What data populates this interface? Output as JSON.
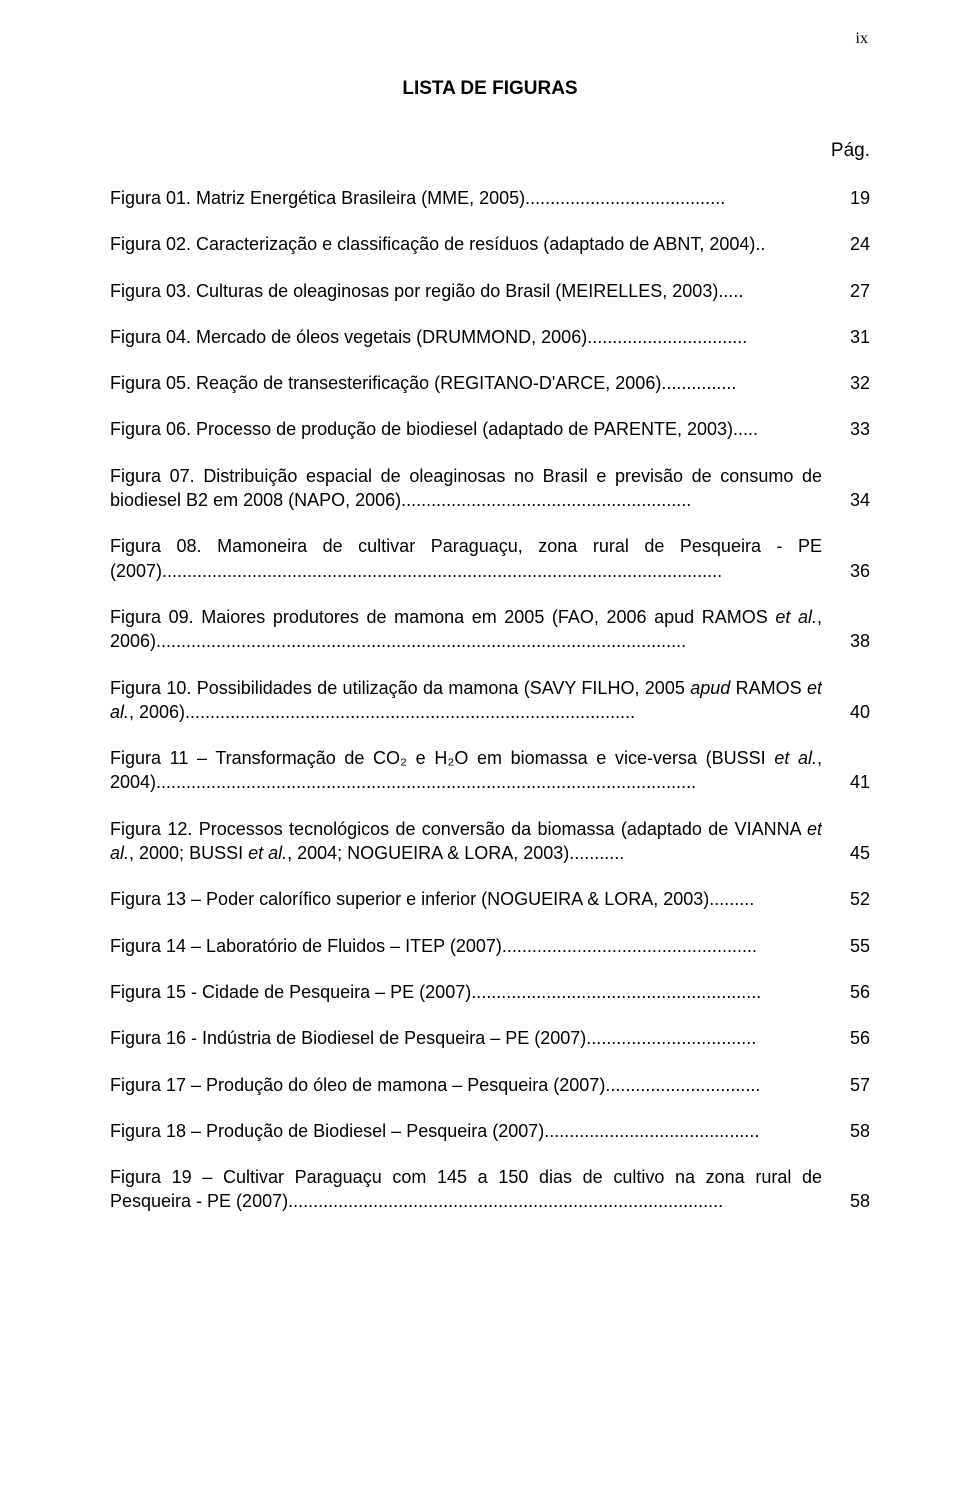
{
  "page_number_roman": "ix",
  "title": "LISTA DE FIGURAS",
  "pag_label": "Pág.",
  "typography": {
    "body_font": "Arial",
    "pagenum_font": "Times New Roman",
    "title_fontsize_pt": 14,
    "body_fontsize_pt": 13,
    "text_color": "#000000",
    "background_color": "#ffffff"
  },
  "entries": [
    {
      "text": "Figura 01. Matriz Energética Brasileira (MME, 2005)........................................",
      "page": "19"
    },
    {
      "text": "Figura 02. Caracterização e classificação de resíduos (adaptado de ABNT, 2004)..",
      "page": "24"
    },
    {
      "text": "Figura 03. Culturas de oleaginosas por região do Brasil (MEIRELLES, 2003).....",
      "page": "27"
    },
    {
      "text": "Figura 04. Mercado de óleos vegetais (DRUMMOND, 2006)................................",
      "page": "31"
    },
    {
      "text": "Figura 05. Reação de transesterificação (REGITANO-D'ARCE, 2006)...............",
      "page": "32"
    },
    {
      "text": "Figura 06. Processo de produção de biodiesel (adaptado de PARENTE, 2003).....",
      "page": "33"
    },
    {
      "text": "Figura 07. Distribuição espacial de oleaginosas no Brasil e previsão de consumo de biodiesel B2 em 2008 (NAPO, 2006)..........................................................",
      "page": "34"
    },
    {
      "text": "Figura 08. Mamoneira de cultivar Paraguaçu, zona rural de Pesqueira - PE (2007)................................................................................................................",
      "page": "36"
    },
    {
      "text_html": "Figura 09. Maiores produtores de mamona em 2005 (FAO, 2006 apud RAMOS <span class=\"italic\">et al.</span>, 2006)..........................................................................................................",
      "page": "38"
    },
    {
      "text_html": "Figura 10.  Possibilidades de utilização da mamona (SAVY FILHO, 2005 <span class=\"italic\">apud</span> RAMOS <span class=\"italic\">et al.</span>, 2006)..........................................................................................",
      "page": "40"
    },
    {
      "text_html": "Figura 11 – Transformação de CO₂ e H₂O em biomassa e vice-versa (BUSSI <span class=\"italic\">et al.</span>, 2004)............................................................................................................",
      "page": "41"
    },
    {
      "text_html": "Figura 12.  Processos tecnológicos de conversão da biomassa (adaptado de VIANNA <span class=\"italic\">et al.</span>, 2000; BUSSI <span class=\"italic\">et al.</span>, 2004; NOGUEIRA & LORA, 2003)...........",
      "page": "45"
    },
    {
      "text": "Figura 13 – Poder calorífico superior e inferior (NOGUEIRA & LORA, 2003).........",
      "page": "52"
    },
    {
      "text": "Figura 14 – Laboratório de Fluidos – ITEP (2007)...................................................",
      "page": "55"
    },
    {
      "text": "Figura 15 - Cidade de Pesqueira – PE (2007)..........................................................",
      "page": "56"
    },
    {
      "text": "Figura 16 - Indústria de Biodiesel de Pesqueira – PE (2007)..................................",
      "page": "56"
    },
    {
      "text": "Figura 17 – Produção do óleo de mamona – Pesqueira (2007)...............................",
      "page": "57"
    },
    {
      "text": "Figura 18 – Produção de Biodiesel – Pesqueira (2007)...........................................",
      "page": "58"
    },
    {
      "text": "Figura 19 – Cultivar Paraguaçu com 145 a 150 dias de cultivo na zona rural de Pesqueira - PE (2007).......................................................................................",
      "page": "58"
    }
  ]
}
